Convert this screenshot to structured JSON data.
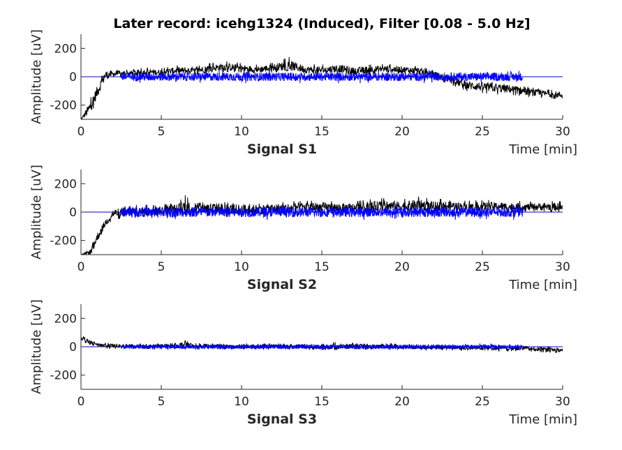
{
  "title": "Later record: icehg1324 (Induced), Filter [0.08 - 5.0 Hz]",
  "colors": {
    "raw": "#000000",
    "filtered": "#0000ff",
    "zero_line": "#0000cc",
    "axes": "#262626"
  },
  "chart_data": [
    {
      "type": "line",
      "subplot_label": "Signal S1",
      "xlabel": "Time [min]",
      "ylabel": "Amplitude [uV]",
      "xlim": [
        0,
        30
      ],
      "ylim": [
        -300,
        300
      ],
      "xticks": [
        0,
        5,
        10,
        15,
        20,
        25,
        30
      ],
      "yticks": [
        -200,
        0,
        200
      ],
      "grid": false,
      "series": [
        {
          "color": "#000000",
          "x": [
            0,
            0.5,
            1,
            1.5,
            2,
            3,
            4,
            5,
            6,
            7,
            8,
            9,
            10,
            11,
            12,
            13,
            14,
            15,
            16,
            17,
            18,
            19,
            20,
            21,
            22,
            23,
            24,
            25,
            26,
            27,
            28,
            29,
            30
          ],
          "y": [
            -300,
            -230,
            -110,
            10,
            20,
            25,
            35,
            30,
            45,
            40,
            60,
            70,
            60,
            50,
            65,
            80,
            50,
            45,
            60,
            40,
            50,
            55,
            50,
            40,
            15,
            -20,
            -60,
            -70,
            -80,
            -90,
            -110,
            -120,
            -130
          ],
          "upper": [
            -300,
            -170,
            -60,
            55,
            45,
            50,
            65,
            60,
            80,
            70,
            95,
            110,
            95,
            85,
            100,
            140,
            90,
            85,
            100,
            80,
            85,
            90,
            85,
            75,
            45,
            10,
            -20,
            -30,
            -40,
            -55,
            -75,
            -90,
            -100
          ],
          "lower": [
            -300,
            -290,
            -170,
            -35,
            -10,
            0,
            10,
            5,
            15,
            10,
            30,
            35,
            30,
            20,
            30,
            45,
            20,
            15,
            25,
            10,
            15,
            20,
            20,
            10,
            -15,
            -55,
            -100,
            -115,
            -125,
            -130,
            -145,
            -150,
            -160
          ]
        },
        {
          "color": "#0000ff",
          "x": [
            2.5,
            27.5
          ],
          "y": [
            0,
            0
          ],
          "amplitude": 30
        }
      ]
    },
    {
      "type": "line",
      "subplot_label": "Signal S2",
      "xlabel": "Time [min]",
      "ylabel": "Amplitude [uV]",
      "xlim": [
        0,
        30
      ],
      "ylim": [
        -300,
        300
      ],
      "xticks": [
        0,
        5,
        10,
        15,
        20,
        25,
        30
      ],
      "yticks": [
        -200,
        0,
        200
      ],
      "grid": false,
      "series": [
        {
          "color": "#000000",
          "x": [
            0,
            0.6,
            1,
            1.5,
            2,
            3,
            4,
            5,
            6,
            6.5,
            7,
            8,
            9,
            10,
            11,
            12,
            13,
            14,
            15,
            16,
            17,
            18,
            19,
            20,
            21,
            22,
            23,
            24,
            25,
            26,
            27,
            28,
            29,
            30
          ],
          "y": [
            -300,
            -280,
            -180,
            -80,
            -10,
            5,
            0,
            10,
            20,
            40,
            20,
            30,
            25,
            15,
            20,
            25,
            30,
            35,
            35,
            30,
            30,
            40,
            45,
            40,
            50,
            40,
            45,
            35,
            40,
            40,
            35,
            35,
            40,
            35
          ],
          "upper": [
            -300,
            -250,
            -140,
            -45,
            30,
            45,
            40,
            50,
            65,
            120,
            60,
            75,
            70,
            55,
            60,
            65,
            75,
            80,
            80,
            75,
            75,
            90,
            100,
            90,
            110,
            90,
            95,
            80,
            85,
            85,
            80,
            75,
            80,
            75
          ],
          "lower": [
            -300,
            -300,
            -220,
            -110,
            -50,
            -40,
            -45,
            -35,
            -30,
            -20,
            -30,
            -25,
            -30,
            -45,
            -30,
            -25,
            -15,
            -10,
            -10,
            -10,
            -10,
            0,
            0,
            0,
            5,
            0,
            5,
            0,
            5,
            5,
            0,
            5,
            5,
            0
          ]
        },
        {
          "color": "#0000ff",
          "x": [
            2.5,
            27.5
          ],
          "y": [
            0,
            0
          ],
          "amplitude": 35
        }
      ]
    },
    {
      "type": "line",
      "subplot_label": "Signal S3",
      "xlabel": "Time [min]",
      "ylabel": "Amplitude [uV]",
      "xlim": [
        0,
        30
      ],
      "ylim": [
        -300,
        300
      ],
      "xticks": [
        0,
        5,
        10,
        15,
        20,
        25,
        30
      ],
      "yticks": [
        -200,
        0,
        200
      ],
      "grid": false,
      "series": [
        {
          "color": "#000000",
          "x": [
            0,
            0.5,
            1,
            2,
            3,
            4,
            5,
            6,
            6.5,
            7,
            8,
            9,
            10,
            11,
            12,
            13,
            14,
            15,
            16,
            17,
            18,
            19,
            20,
            21,
            22,
            23,
            24,
            25,
            26,
            27,
            28,
            29,
            30
          ],
          "y": [
            60,
            30,
            15,
            5,
            5,
            0,
            5,
            5,
            20,
            5,
            5,
            0,
            5,
            0,
            5,
            0,
            0,
            0,
            0,
            5,
            0,
            5,
            0,
            0,
            -5,
            -5,
            -10,
            -5,
            -10,
            -10,
            -15,
            -20,
            -25
          ],
          "upper": [
            80,
            50,
            30,
            25,
            20,
            20,
            25,
            25,
            65,
            25,
            25,
            20,
            25,
            20,
            25,
            20,
            20,
            20,
            35,
            25,
            20,
            25,
            20,
            20,
            15,
            10,
            10,
            15,
            10,
            10,
            5,
            0,
            -10
          ],
          "lower": [
            40,
            10,
            0,
            -20,
            -10,
            -15,
            -15,
            -15,
            -5,
            -15,
            -15,
            -20,
            -15,
            -20,
            -15,
            -20,
            -20,
            -20,
            -20,
            -15,
            -20,
            -15,
            -20,
            -20,
            -25,
            -25,
            -30,
            -25,
            -30,
            -30,
            -35,
            -40,
            -45
          ]
        },
        {
          "color": "#0000ff",
          "x": [
            2.5,
            27.5
          ],
          "y": [
            0,
            0
          ],
          "amplitude": 15
        }
      ]
    }
  ]
}
